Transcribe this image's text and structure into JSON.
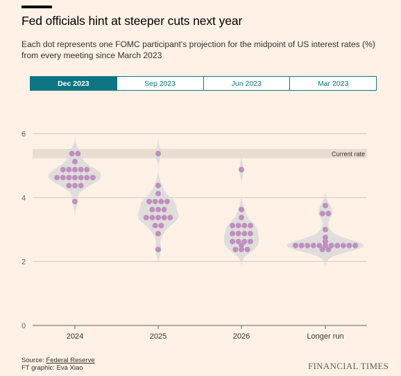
{
  "title": "Fed officials hint at steeper cuts next year",
  "subtitle": "Each dot represents one FOMC participant's projection for the midpoint of US interest rates (%) from every meeting since March 2023",
  "tabs": [
    {
      "label": "Dec 2023",
      "active": true
    },
    {
      "label": "Sep 2023",
      "active": false
    },
    {
      "label": "Jun 2023",
      "active": false
    },
    {
      "label": "Mar 2023",
      "active": false
    }
  ],
  "colors": {
    "background": "#FFF1E5",
    "accent": "#0D7680",
    "dot": "#C08FBE",
    "violin": "#DCDBDB",
    "current_rate_band": "#E9DCD0"
  },
  "source": {
    "prefix": "Source: ",
    "link_text": "Federal Reserve",
    "credit": "FT graphic: Eva Xiao"
  },
  "logo": "FINANCIAL TIMES",
  "chart_data": {
    "type": "scatter",
    "title": "",
    "xlabel": "",
    "ylabel": "",
    "ylim": [
      0,
      6
    ],
    "yticks": [
      0,
      2,
      4,
      6
    ],
    "grid": true,
    "categories": [
      "2024",
      "2025",
      "2026",
      "Longer run"
    ],
    "reference_band": {
      "label": "Current rate",
      "range": [
        5.25,
        5.5
      ]
    },
    "series": [
      {
        "category": "2024",
        "values": [
          5.375,
          5.375,
          5.125,
          4.875,
          4.875,
          4.875,
          4.875,
          4.875,
          4.625,
          4.625,
          4.625,
          4.625,
          4.625,
          4.625,
          4.625,
          4.375,
          4.375,
          4.375,
          3.875
        ]
      },
      {
        "category": "2025",
        "values": [
          5.375,
          4.375,
          4.125,
          3.875,
          3.875,
          3.875,
          3.875,
          3.625,
          3.625,
          3.625,
          3.375,
          3.375,
          3.375,
          3.375,
          3.375,
          3.125,
          3.125,
          2.875,
          2.375
        ]
      },
      {
        "category": "2026",
        "values": [
          4.875,
          3.625,
          3.375,
          3.125,
          3.125,
          3.125,
          3.125,
          2.875,
          2.875,
          2.875,
          2.875,
          2.625,
          2.625,
          2.625,
          2.625,
          2.5,
          2.375,
          2.375,
          2.375
        ]
      },
      {
        "category": "Longer run",
        "values": [
          3.75,
          3.5,
          3.5,
          3.0,
          2.75,
          2.625,
          2.5,
          2.5,
          2.5,
          2.5,
          2.5,
          2.5,
          2.5,
          2.5,
          2.5,
          2.5,
          2.5,
          2.375,
          2.375
        ]
      }
    ]
  }
}
